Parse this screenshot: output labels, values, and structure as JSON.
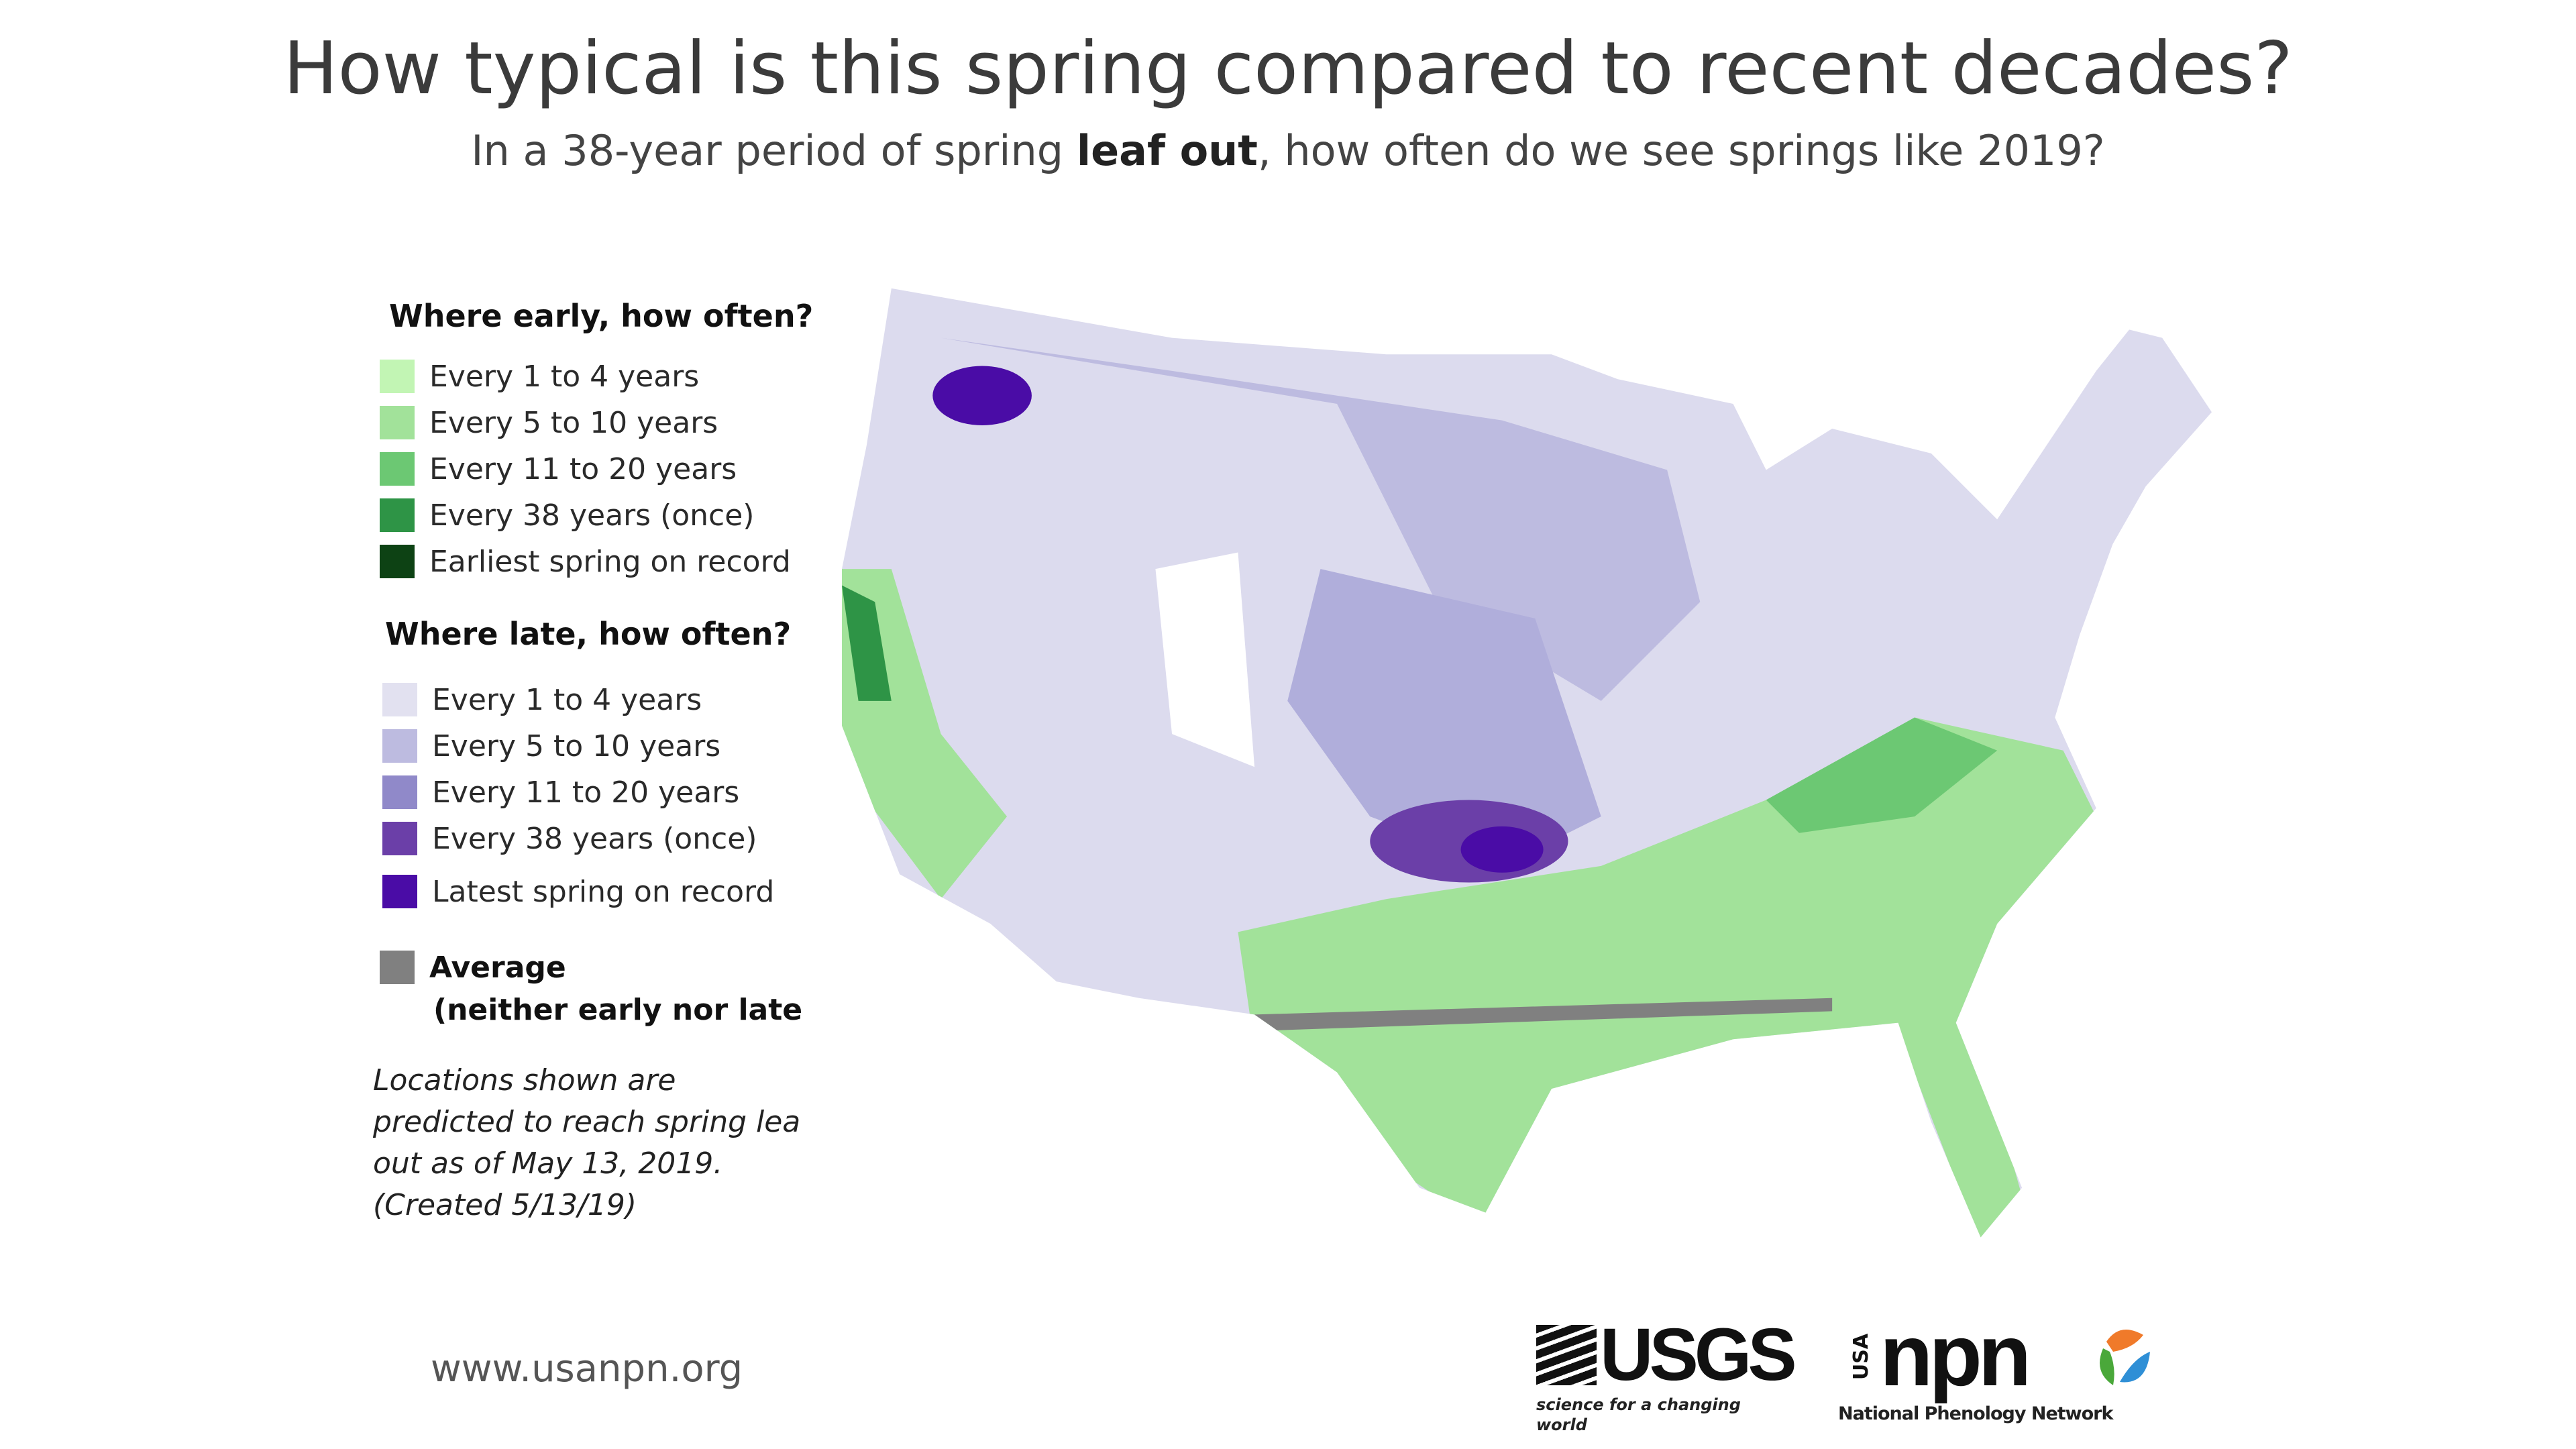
{
  "chart_data": {
    "type": "heatmap",
    "title": "How typical is this spring compared to recent decades?",
    "subtitle_pre": "In a 38-year period of spring ",
    "subtitle_bold": "leaf out",
    "subtitle_post": ", how often do we see springs like 2019?",
    "legend_early": {
      "heading": "Where early, how often?",
      "items": [
        {
          "label": "Every 1 to 4 years",
          "color": "#c2f5b4"
        },
        {
          "label": "Every 5 to 10 years",
          "color": "#a2e29a"
        },
        {
          "label": "Every 11 to 20 years",
          "color": "#6cc873"
        },
        {
          "label": "Every 38 years (once)",
          "color": "#2e9446"
        },
        {
          "label": "Earliest spring on record",
          "color": "#0d4214"
        }
      ]
    },
    "legend_late": {
      "heading": "Where late, how often?",
      "items": [
        {
          "label": "Every 1 to 4 years",
          "color": "#e2e1f0"
        },
        {
          "label": "Every 5 to 10 years",
          "color": "#bdbbe0"
        },
        {
          "label": "Every 11 to 20 years",
          "color": "#9089c9"
        },
        {
          "label": "Every 38 years (once)",
          "color": "#6b3fa8"
        },
        {
          "label": "Latest spring on record",
          "color": "#4a0ca6"
        }
      ]
    },
    "legend_average": {
      "label": "Average",
      "sublabel": "(neither early nor late",
      "color": "#808080"
    },
    "note": [
      "Locations shown are",
      "predicted to reach spring lea",
      "out as of May 13, 2019.",
      "(Created 5/13/19)"
    ]
  },
  "footer": {
    "url": "www.usanpn.org",
    "usgs": "USGS",
    "usgs_tagline": "science for a changing world",
    "npn": "npn",
    "npn_usa": "USA",
    "npn_tagline": "National Phenology Network"
  }
}
